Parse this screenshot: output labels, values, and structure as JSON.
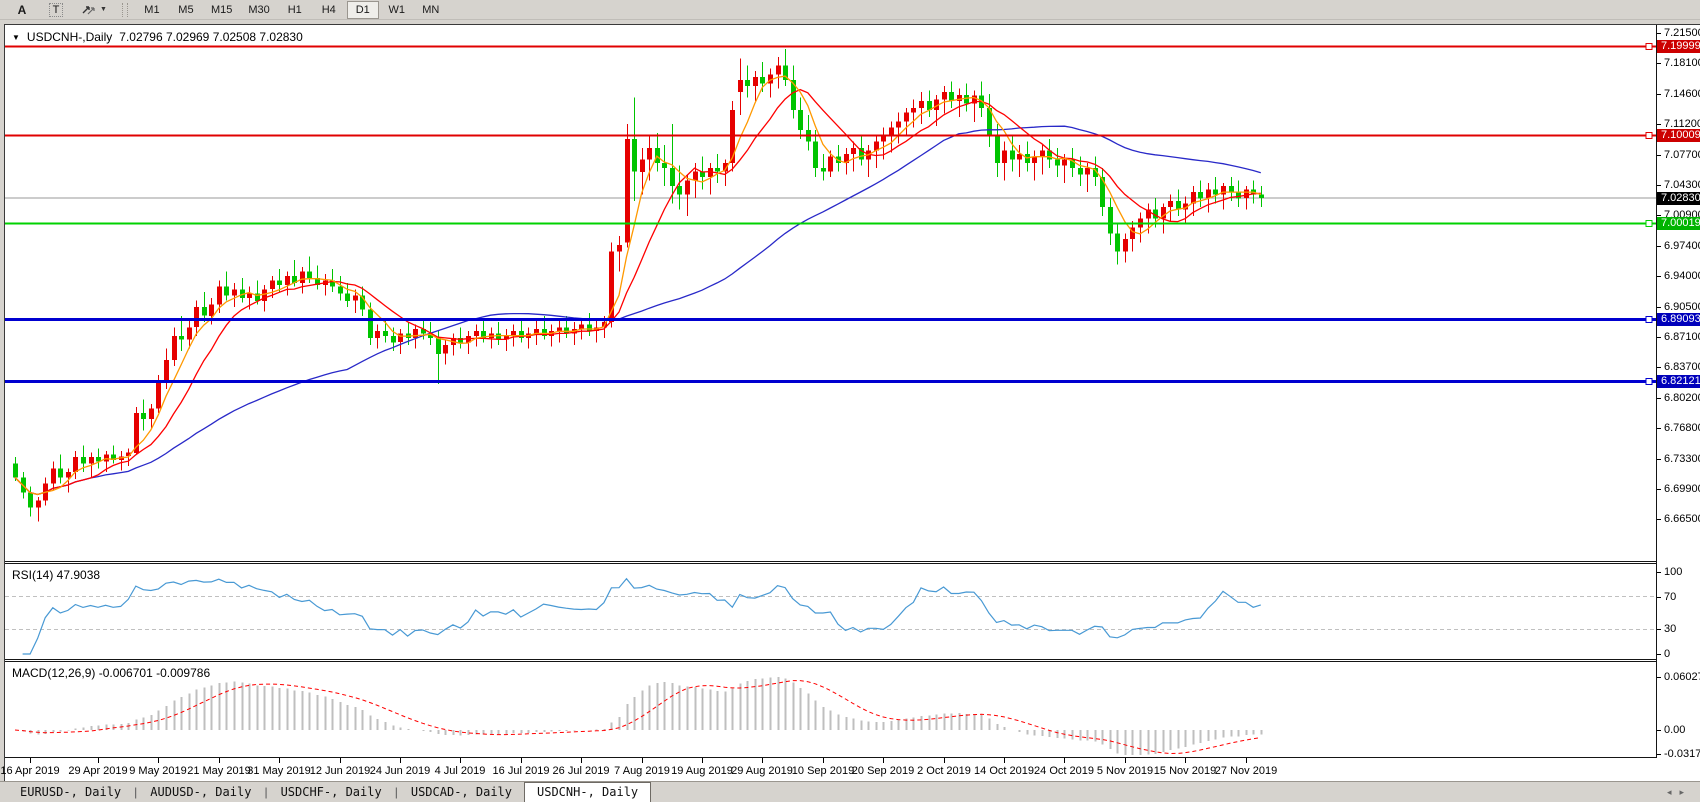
{
  "toolbar": {
    "tool_icons": [
      {
        "name": "font-tool",
        "label": "A"
      },
      {
        "name": "text-tool",
        "label": "T"
      },
      {
        "name": "arrow-objects",
        "label": ""
      }
    ],
    "timeframes": [
      "M1",
      "M5",
      "M15",
      "M30",
      "H1",
      "H4",
      "D1",
      "W1",
      "MN"
    ],
    "active_timeframe": "D1"
  },
  "chart": {
    "menu_icon": "▼",
    "symbol_period": "USDCNH-,Daily",
    "quote": "7.02796 7.02969 7.02508 7.02830",
    "price_axis_ticks": [
      "7.21500",
      "7.18100",
      "7.14600",
      "7.11200",
      "7.07700",
      "7.04300",
      "7.00900",
      "6.97400",
      "6.94000",
      "6.90500",
      "6.87100",
      "6.83700",
      "6.80200",
      "6.76800",
      "6.73300",
      "6.69900",
      "6.66500"
    ],
    "levels": [
      {
        "price": 7.19999,
        "label": "7.19999",
        "color": "#e00000",
        "badge_bg": "#cc0000",
        "width": 2
      },
      {
        "price": 7.10009,
        "label": "7.10009",
        "color": "#e00000",
        "badge_bg": "#cc0000",
        "width": 2
      },
      {
        "price": 7.00019,
        "label": "7.00019",
        "color": "#00d200",
        "badge_bg": "#00b400",
        "width": 2
      },
      {
        "price": 6.89093,
        "label": "6.89093",
        "color": "#0000d0",
        "badge_bg": "#0000bb",
        "width": 3
      },
      {
        "price": 6.82121,
        "label": "6.82121",
        "color": "#0000d0",
        "badge_bg": "#0000bb",
        "width": 3
      }
    ],
    "current_price": {
      "price": 7.0283,
      "label": "7.02830",
      "line_color": "#9a9a9a",
      "badge_bg": "#000000"
    }
  },
  "rsi": {
    "label": "RSI(14) 47.9038",
    "period": 14,
    "value": "47.9038",
    "axis_ticks": [
      {
        "v": 100,
        "t": "100"
      },
      {
        "v": 70,
        "t": "70"
      },
      {
        "v": 30,
        "t": "30"
      },
      {
        "v": 0,
        "t": "0"
      }
    ],
    "guide_levels": [
      70,
      30
    ],
    "line_color": "#4899d4"
  },
  "macd": {
    "label": "MACD(12,26,9) -0.006701 -0.009786",
    "macd_value": "-0.006701",
    "signal_value": "-0.009786",
    "axis_ticks": [
      "0.060273",
      "0.00",
      "-0.031725"
    ],
    "hist_color": "#bfbfbf",
    "signal_color": "#ff0000"
  },
  "date_axis": {
    "labels": [
      {
        "t": "16 Apr 2019",
        "i": 2
      },
      {
        "t": "29 Apr 2019",
        "i": 11
      },
      {
        "t": "9 May 2019",
        "i": 19
      },
      {
        "t": "21 May 2019",
        "i": 27
      },
      {
        "t": "31 May 2019",
        "i": 35
      },
      {
        "t": "12 Jun 2019",
        "i": 43
      },
      {
        "t": "24 Jun 2019",
        "i": 51
      },
      {
        "t": "4 Jul 2019",
        "i": 59
      },
      {
        "t": "16 Jul 2019",
        "i": 67
      },
      {
        "t": "26 Jul 2019",
        "i": 75
      },
      {
        "t": "7 Aug 2019",
        "i": 83
      },
      {
        "t": "19 Aug 2019",
        "i": 91
      },
      {
        "t": "29 Aug 2019",
        "i": 99
      },
      {
        "t": "10 Sep 2019",
        "i": 107
      },
      {
        "t": "20 Sep 2019",
        "i": 115
      },
      {
        "t": "2 Oct 2019",
        "i": 123
      },
      {
        "t": "14 Oct 2019",
        "i": 131
      },
      {
        "t": "24 Oct 2019",
        "i": 139
      },
      {
        "t": "5 Nov 2019",
        "i": 147
      },
      {
        "t": "15 Nov 2019",
        "i": 155
      },
      {
        "t": "27 Nov 2019",
        "i": 163
      }
    ]
  },
  "tabs": {
    "items": [
      "EURUSD-, Daily",
      "AUDUSD-, Daily",
      "USDCHF-, Daily",
      "USDCAD-, Daily",
      "USDCNH-, Daily"
    ],
    "active_index": 4,
    "scroll_left_icon": "◂",
    "scroll_right_icon": "▸"
  },
  "chart_data": {
    "type": "candlestick",
    "symbol": "USDCNH",
    "timeframe": "Daily",
    "convention": "red = bullish (up), green = bearish (down)",
    "up_color": "#e60000",
    "down_color": "#00c400",
    "price_range_shown": [
      6.665,
      7.215
    ],
    "horizontal_lines": [
      7.19999,
      7.10009,
      7.00019,
      6.89093,
      6.82121
    ],
    "moving_averages": [
      {
        "period": 5,
        "color": "#ff9900"
      },
      {
        "period": 10,
        "color": "#ff0000"
      },
      {
        "period": 45,
        "color": "#2929c8"
      }
    ],
    "indicators": [
      {
        "name": "RSI",
        "period": 14,
        "last": 47.9038
      },
      {
        "name": "MACD",
        "fast": 12,
        "slow": 26,
        "signal": 9,
        "last_macd": -0.006701,
        "last_signal": -0.009786
      }
    ],
    "candles_start_date": "2019-04-12",
    "candles_format": [
      "open",
      "high",
      "low",
      "close"
    ],
    "candles": [
      [
        6.728,
        6.735,
        6.708,
        6.712
      ],
      [
        6.712,
        6.718,
        6.688,
        6.695
      ],
      [
        6.695,
        6.702,
        6.668,
        6.678
      ],
      [
        6.678,
        6.69,
        6.662,
        6.686
      ],
      [
        6.686,
        6.712,
        6.68,
        6.705
      ],
      [
        6.705,
        6.73,
        6.698,
        6.722
      ],
      [
        6.722,
        6.738,
        6.705,
        6.712
      ],
      [
        6.712,
        6.722,
        6.695,
        6.718
      ],
      [
        6.718,
        6.742,
        6.71,
        6.735
      ],
      [
        6.735,
        6.748,
        6.718,
        6.728
      ],
      [
        6.728,
        6.74,
        6.712,
        6.735
      ],
      [
        6.735,
        6.745,
        6.722,
        6.73
      ],
      [
        6.73,
        6.742,
        6.718,
        6.738
      ],
      [
        6.738,
        6.748,
        6.728,
        6.732
      ],
      [
        6.732,
        6.742,
        6.72,
        6.736
      ],
      [
        6.736,
        6.745,
        6.725,
        6.74
      ],
      [
        6.74,
        6.792,
        6.738,
        6.785
      ],
      [
        6.785,
        6.8,
        6.765,
        6.778
      ],
      [
        6.778,
        6.795,
        6.768,
        6.79
      ],
      [
        6.79,
        6.828,
        6.785,
        6.822
      ],
      [
        6.822,
        6.858,
        6.812,
        6.845
      ],
      [
        6.845,
        6.882,
        6.838,
        6.872
      ],
      [
        6.872,
        6.895,
        6.855,
        6.868
      ],
      [
        6.868,
        6.892,
        6.858,
        6.882
      ],
      [
        6.882,
        6.912,
        6.872,
        6.905
      ],
      [
        6.905,
        6.922,
        6.888,
        6.895
      ],
      [
        6.895,
        6.915,
        6.885,
        6.908
      ],
      [
        6.908,
        6.935,
        6.898,
        6.928
      ],
      [
        6.928,
        6.945,
        6.912,
        6.918
      ],
      [
        6.918,
        6.932,
        6.905,
        6.925
      ],
      [
        6.925,
        6.938,
        6.91,
        6.915
      ],
      [
        6.915,
        6.928,
        6.902,
        6.92
      ],
      [
        6.92,
        6.935,
        6.908,
        6.912
      ],
      [
        6.912,
        6.93,
        6.9,
        6.925
      ],
      [
        6.925,
        6.94,
        6.915,
        6.935
      ],
      [
        6.935,
        6.948,
        6.922,
        6.93
      ],
      [
        6.93,
        6.945,
        6.918,
        6.94
      ],
      [
        6.94,
        6.958,
        6.928,
        6.932
      ],
      [
        6.932,
        6.95,
        6.92,
        6.945
      ],
      [
        6.945,
        6.962,
        6.932,
        6.938
      ],
      [
        6.938,
        6.952,
        6.925,
        6.93
      ],
      [
        6.93,
        6.942,
        6.918,
        6.935
      ],
      [
        6.935,
        6.948,
        6.922,
        6.928
      ],
      [
        6.928,
        6.94,
        6.912,
        6.92
      ],
      [
        6.92,
        6.932,
        6.905,
        6.912
      ],
      [
        6.912,
        6.925,
        6.898,
        6.918
      ],
      [
        6.918,
        6.928,
        6.895,
        6.902
      ],
      [
        6.902,
        6.91,
        6.862,
        6.87
      ],
      [
        6.87,
        6.885,
        6.858,
        6.878
      ],
      [
        6.878,
        6.89,
        6.865,
        6.872
      ],
      [
        6.872,
        6.882,
        6.855,
        6.865
      ],
      [
        6.865,
        6.88,
        6.852,
        6.875
      ],
      [
        6.875,
        6.888,
        6.862,
        6.87
      ],
      [
        6.87,
        6.885,
        6.858,
        6.88
      ],
      [
        6.88,
        6.892,
        6.868,
        6.875
      ],
      [
        6.875,
        6.888,
        6.862,
        6.87
      ],
      [
        6.87,
        6.878,
        6.818,
        6.852
      ],
      [
        6.852,
        6.868,
        6.84,
        6.862
      ],
      [
        6.862,
        6.875,
        6.85,
        6.87
      ],
      [
        6.87,
        6.882,
        6.858,
        6.865
      ],
      [
        6.865,
        6.878,
        6.852,
        6.872
      ],
      [
        6.872,
        6.885,
        6.86,
        6.878
      ],
      [
        6.878,
        6.89,
        6.865,
        6.87
      ],
      [
        6.87,
        6.882,
        6.858,
        6.875
      ],
      [
        6.875,
        6.888,
        6.862,
        6.868
      ],
      [
        6.868,
        6.88,
        6.855,
        6.872
      ],
      [
        6.872,
        6.885,
        6.86,
        6.878
      ],
      [
        6.878,
        6.892,
        6.865,
        6.87
      ],
      [
        6.87,
        6.882,
        6.858,
        6.875
      ],
      [
        6.875,
        6.89,
        6.862,
        6.88
      ],
      [
        6.88,
        6.895,
        6.868,
        6.872
      ],
      [
        6.872,
        6.885,
        6.86,
        6.878
      ],
      [
        6.878,
        6.892,
        6.865,
        6.882
      ],
      [
        6.882,
        6.895,
        6.87,
        6.875
      ],
      [
        6.875,
        6.888,
        6.862,
        6.88
      ],
      [
        6.88,
        6.892,
        6.868,
        6.885
      ],
      [
        6.885,
        6.898,
        6.872,
        6.878
      ],
      [
        6.878,
        6.89,
        6.865,
        6.882
      ],
      [
        6.882,
        6.895,
        6.87,
        6.888
      ],
      [
        6.888,
        6.978,
        6.882,
        6.968
      ],
      [
        6.968,
        6.985,
        6.945,
        6.975
      ],
      [
        6.978,
        7.112,
        6.972,
        7.095
      ],
      [
        7.095,
        7.142,
        7.025,
        7.058
      ],
      [
        7.058,
        7.085,
        7.032,
        7.072
      ],
      [
        7.072,
        7.098,
        7.048,
        7.085
      ],
      [
        7.085,
        7.102,
        7.058,
        7.068
      ],
      [
        7.068,
        7.088,
        7.042,
        7.062
      ],
      [
        7.062,
        7.112,
        7.022,
        7.042
      ],
      [
        7.042,
        7.065,
        7.015,
        7.032
      ],
      [
        7.032,
        7.055,
        7.008,
        7.048
      ],
      [
        7.048,
        7.068,
        7.028,
        7.058
      ],
      [
        7.058,
        7.075,
        7.038,
        7.052
      ],
      [
        7.052,
        7.068,
        7.032,
        7.062
      ],
      [
        7.062,
        7.078,
        7.045,
        7.058
      ],
      [
        7.058,
        7.072,
        7.042,
        7.068
      ],
      [
        7.068,
        7.138,
        7.058,
        7.128
      ],
      [
        7.148,
        7.186,
        7.122,
        7.162
      ],
      [
        7.162,
        7.178,
        7.142,
        7.155
      ],
      [
        7.155,
        7.172,
        7.138,
        7.165
      ],
      [
        7.165,
        7.182,
        7.148,
        7.158
      ],
      [
        7.158,
        7.175,
        7.142,
        7.168
      ],
      [
        7.168,
        7.188,
        7.152,
        7.178
      ],
      [
        7.178,
        7.197,
        7.155,
        7.162
      ],
      [
        7.162,
        7.178,
        7.118,
        7.128
      ],
      [
        7.128,
        7.142,
        7.095,
        7.105
      ],
      [
        7.105,
        7.122,
        7.082,
        7.092
      ],
      [
        7.092,
        7.105,
        7.052,
        7.062
      ],
      [
        7.062,
        7.078,
        7.048,
        7.058
      ],
      [
        7.058,
        7.082,
        7.052,
        7.075
      ],
      [
        7.075,
        7.088,
        7.058,
        7.068
      ],
      [
        7.068,
        7.085,
        7.055,
        7.078
      ],
      [
        7.078,
        7.092,
        7.058,
        7.085
      ],
      [
        7.085,
        7.098,
        7.065,
        7.072
      ],
      [
        7.072,
        7.088,
        7.052,
        7.082
      ],
      [
        7.082,
        7.098,
        7.062,
        7.092
      ],
      [
        7.092,
        7.108,
        7.072,
        7.098
      ],
      [
        7.098,
        7.115,
        7.08,
        7.108
      ],
      [
        7.108,
        7.125,
        7.09,
        7.115
      ],
      [
        7.115,
        7.13,
        7.098,
        7.125
      ],
      [
        7.125,
        7.14,
        7.108,
        7.13
      ],
      [
        7.13,
        7.148,
        7.112,
        7.138
      ],
      [
        7.138,
        7.15,
        7.12,
        7.128
      ],
      [
        7.128,
        7.145,
        7.11,
        7.14
      ],
      [
        7.14,
        7.155,
        7.124,
        7.148
      ],
      [
        7.148,
        7.16,
        7.13,
        7.138
      ],
      [
        7.138,
        7.152,
        7.12,
        7.145
      ],
      [
        7.145,
        7.158,
        7.126,
        7.135
      ],
      [
        7.135,
        7.15,
        7.114,
        7.144
      ],
      [
        7.144,
        7.16,
        7.12,
        7.13
      ],
      [
        7.13,
        7.146,
        7.086,
        7.098
      ],
      [
        7.098,
        7.112,
        7.052,
        7.068
      ],
      [
        7.068,
        7.092,
        7.048,
        7.082
      ],
      [
        7.082,
        7.098,
        7.058,
        7.072
      ],
      [
        7.072,
        7.088,
        7.052,
        7.078
      ],
      [
        7.078,
        7.092,
        7.058,
        7.068
      ],
      [
        7.068,
        7.082,
        7.048,
        7.075
      ],
      [
        7.075,
        7.088,
        7.055,
        7.082
      ],
      [
        7.082,
        7.095,
        7.062,
        7.072
      ],
      [
        7.072,
        7.085,
        7.052,
        7.065
      ],
      [
        7.065,
        7.078,
        7.045,
        7.072
      ],
      [
        7.072,
        7.085,
        7.052,
        7.062
      ],
      [
        7.062,
        7.075,
        7.042,
        7.055
      ],
      [
        7.055,
        7.068,
        7.035,
        7.062
      ],
      [
        7.062,
        7.075,
        7.042,
        7.052
      ],
      [
        7.052,
        7.062,
        7.008,
        7.018
      ],
      [
        7.018,
        7.028,
        6.975,
        6.988
      ],
      [
        6.988,
        6.998,
        6.953,
        6.968
      ],
      [
        6.968,
        6.988,
        6.955,
        6.982
      ],
      [
        6.982,
        7.002,
        6.968,
        6.995
      ],
      [
        6.995,
        7.012,
        6.978,
        7.005
      ],
      [
        7.005,
        7.022,
        6.988,
        7.015
      ],
      [
        7.015,
        7.028,
        6.995,
        7.005
      ],
      [
        7.005,
        7.022,
        6.988,
        7.018
      ],
      [
        7.018,
        7.032,
        7.002,
        7.025
      ],
      [
        7.025,
        7.038,
        7.008,
        7.015
      ],
      [
        7.015,
        7.03,
        6.998,
        7.022
      ],
      [
        7.022,
        7.042,
        7.008,
        7.035
      ],
      [
        7.035,
        7.048,
        7.018,
        7.028
      ],
      [
        7.028,
        7.045,
        7.012,
        7.038
      ],
      [
        7.038,
        7.052,
        7.022,
        7.032
      ],
      [
        7.032,
        7.045,
        7.015,
        7.042
      ],
      [
        7.042,
        7.052,
        7.025,
        7.035
      ],
      [
        7.035,
        7.048,
        7.018,
        7.028
      ],
      [
        7.028,
        7.042,
        7.015,
        7.038
      ],
      [
        7.038,
        7.048,
        7.022,
        7.032
      ],
      [
        7.032,
        7.042,
        7.018,
        7.028
      ]
    ]
  }
}
